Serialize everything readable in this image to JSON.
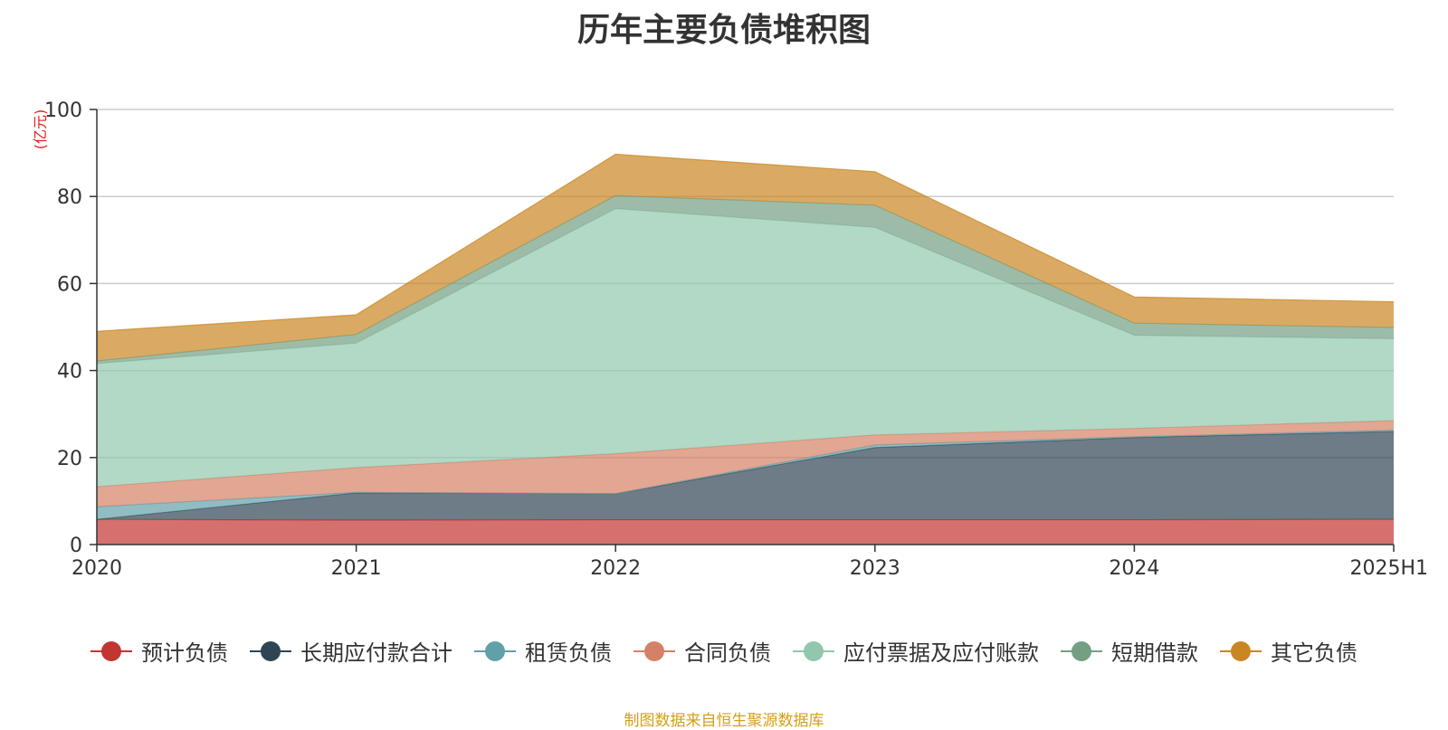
{
  "title": "历年主要负债堆积图",
  "source_note": "制图数据来自恒生聚源数据库",
  "chart_data": {
    "type": "area",
    "stacked": true,
    "categories": [
      "2020",
      "2021",
      "2022",
      "2023",
      "2024",
      "2025H1"
    ],
    "ylabel": "(亿元)",
    "ylim": [
      0,
      100
    ],
    "yticks": [
      0,
      20,
      40,
      60,
      80,
      100
    ],
    "grid": true,
    "legend_position": "bottom",
    "series": [
      {
        "name": "预计负债",
        "color": "#c23531",
        "values": [
          5.8,
          5.6,
          5.7,
          5.7,
          5.7,
          5.8
        ]
      },
      {
        "name": "长期应付款合计",
        "color": "#2f4554",
        "values": [
          0.0,
          6.3,
          6.0,
          16.6,
          18.9,
          20.2
        ]
      },
      {
        "name": "租赁负债",
        "color": "#61a0a8",
        "values": [
          2.9,
          0.1,
          0.0,
          0.6,
          0.2,
          0.3
        ]
      },
      {
        "name": "合同负债",
        "color": "#d48265",
        "values": [
          4.6,
          5.7,
          9.2,
          2.3,
          1.9,
          2.2
        ]
      },
      {
        "name": "应付票据及应付账款",
        "color": "#91c7ae",
        "values": [
          28.3,
          28.6,
          56.3,
          47.7,
          21.4,
          18.8
        ]
      },
      {
        "name": "短期借款",
        "color": "#749f83",
        "values": [
          0.6,
          2.0,
          3.0,
          5.1,
          2.8,
          2.6
        ]
      },
      {
        "name": "其它负债",
        "color": "#ca8622",
        "values": [
          6.8,
          4.5,
          9.5,
          7.7,
          6.0,
          5.9
        ]
      }
    ]
  }
}
